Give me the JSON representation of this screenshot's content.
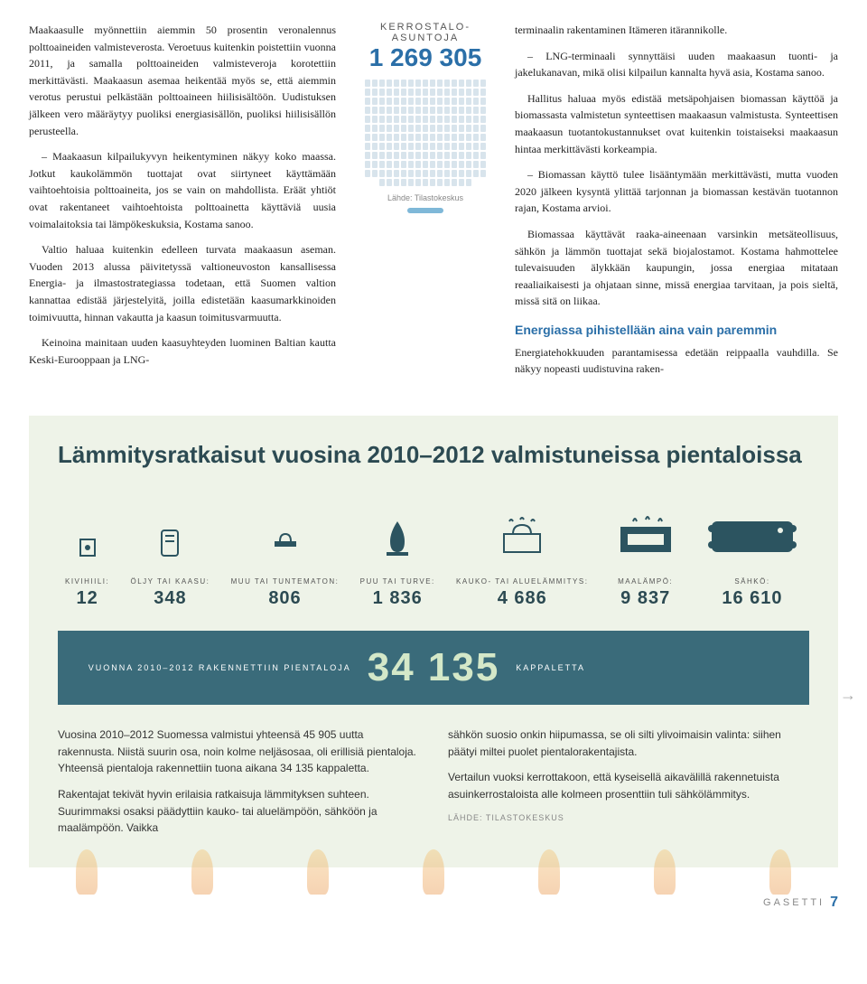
{
  "article": {
    "left_p1": "Maakaasulle myönnettiin aiemmin 50 prosentin veronalennus polttoaineiden valmisteverosta. Veroetuus kuitenkin poistettiin vuonna 2011, ja samalla polttoaineiden valmisteveroja korotettiin merkittävästi. Maakaasun asemaa heikentää myös se, että aiemmin verotus perustui pelkästään polttoaineen hiilisisältöön. Uudistuksen jälkeen vero määräytyy puoliksi energiasisällön, puoliksi hiilisisällön perusteella.",
    "left_p2": "– Maakaasun kilpailukyvyn heikentyminen näkyy koko maassa. Jotkut kaukolämmön tuottajat ovat siirtyneet käyttämään vaihtoehtoisia polttoaineita, jos se vain on mahdollista. Eräät yhtiöt ovat rakentaneet vaihtoehtoista polttoainetta käyttäviä uusia voimalaitoksia tai lämpökeskuksia, Kostama sanoo.",
    "left_p3": "Valtio haluaa kuitenkin edelleen turvata maakaasun aseman. Vuoden 2013 alussa päivitetyssä valtioneuvoston kansallisessa Energia- ja ilmastostrategiassa todetaan, että Suomen valtion kannattaa edistää järjestelyitä, joilla edistetään kaasumarkkinoiden toimivuutta, hinnan vakautta ja kaasun toimitusvarmuutta.",
    "left_p4": "Keinoina mainitaan uuden kaasuyhteyden luominen Baltian kautta Keski-Eurooppaan ja LNG-",
    "mid_label1": "KERROSTALO-",
    "mid_label2": "ASUNTOJA",
    "mid_num": "1 269 305",
    "mid_src": "Lähde: Tilastokeskus",
    "right_p1": "terminaalin rakentaminen Itämeren itärannikolle.",
    "right_p2": "– LNG-terminaali synnyttäisi uuden maakaasun tuonti- ja jakelukanavan, mikä olisi kilpailun kannalta hyvä asia, Kostama sanoo.",
    "right_p3": "Hallitus haluaa myös edistää metsäpohjaisen biomassan käyttöä ja biomassasta valmistetun synteettisen maakaasun valmistusta. Synteettisen maakaasun tuotantokustannukset ovat kuitenkin toistaiseksi maakaasun hintaa merkittävästi korkeampia.",
    "right_p4": "– Biomassan käyttö tulee lisääntymään merkittävästi, mutta vuoden 2020 jälkeen kysyntä ylittää tarjonnan ja biomassan kestävän tuotannon rajan, Kostama arvioi.",
    "right_p5": "Biomassaa käyttävät raaka-aineenaan varsinkin metsäteollisuus, sähkön ja lämmön tuottajat sekä biojalostamot. Kostama hahmottelee tulevaisuuden älykkään kaupungin, jossa energiaa mitataan reaaliaikaisesti ja ohjataan sinne, missä energiaa tarvitaan, ja pois sieltä, missä sitä on liikaa.",
    "subhead": "Energiassa pihistellään aina vain paremmin",
    "right_p6": "Energiatehokkuuden parantamisessa edetään reippaalla vauhdilla. Se näkyy nopeasti uudistuvina raken-"
  },
  "info": {
    "title": "Lämmitysratkaisut vuosina 2010–2012 valmistuneissa pientaloissa",
    "items": [
      {
        "label": "KIVIHIILI:",
        "value": "12"
      },
      {
        "label": "ÖLJY TAI KAASU:",
        "value": "348"
      },
      {
        "label": "MUU TAI TUNTEMATON:",
        "value": "806"
      },
      {
        "label": "PUU TAI TURVE:",
        "value": "1 836"
      },
      {
        "label": "KAUKO- TAI ALUELÄMMITYS:",
        "value": "4 686"
      },
      {
        "label": "MAALÄMPÖ:",
        "value": "9 837"
      },
      {
        "label": "SÄHKÖ:",
        "value": "16 610"
      }
    ],
    "total_pre": "VUONNA 2010–2012 RAKENNETTIIN PIENTALOJA",
    "total_num": "34 135",
    "total_post": "KAPPALETTA",
    "col1_p1": "Vuosina 2010–2012 Suomessa valmistui yhteensä 45 905 uutta rakennusta. Niistä suurin osa, noin kolme neljäsosaa, oli erillisiä pientaloja. Yhteensä pientaloja rakennettiin tuona aikana 34 135 kappaletta.",
    "col1_p2": "Rakentajat tekivät hyvin erilaisia ratkaisuja lämmityksen suhteen. Suurimmaksi osaksi päädyttiin kauko- tai aluelämpöön, sähköön ja maalämpöön. Vaikka",
    "col2_p1": "sähkön suosio onkin hiipumassa, se oli silti ylivoimaisin valinta: siihen päätyi miltei puolet pientalorakentajista.",
    "col2_p2": "Vertailun vuoksi kerrottakoon, että kyseisellä aikavälillä rakennetuista asuinkerrostaloista alle kolmeen prosenttiin tuli sähkölämmitys.",
    "src": "LÄHDE: TILASTOKESKUS"
  },
  "footer": {
    "mag": "GASETTI",
    "page": "7"
  },
  "colors": {
    "accent": "#2b6fa8",
    "box_bg": "#eef3e8",
    "bar_bg": "#3a6b7a"
  }
}
